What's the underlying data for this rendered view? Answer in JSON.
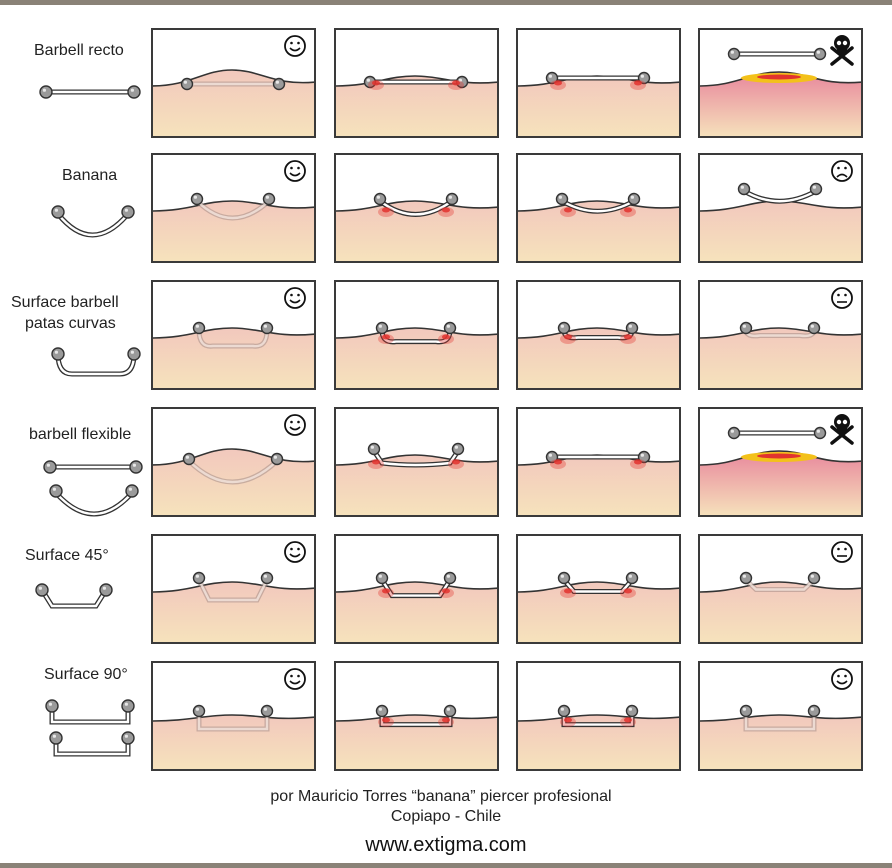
{
  "rows": [
    {
      "label_lines": [
        "Barbell recto"
      ],
      "jewel": "straight",
      "panels": [
        {
          "kind": "good",
          "face": "happy"
        },
        {
          "kind": "mild",
          "face": null
        },
        {
          "kind": "bad",
          "face": null
        },
        {
          "kind": "rejected",
          "face": "skull"
        }
      ]
    },
    {
      "label_lines": [
        "Banana"
      ],
      "jewel": "curved",
      "panels": [
        {
          "kind": "good",
          "face": "happy"
        },
        {
          "kind": "mild",
          "face": null
        },
        {
          "kind": "bad",
          "face": null
        },
        {
          "kind": "out",
          "face": "sad"
        }
      ]
    },
    {
      "label_lines": [
        "Surface barbell",
        "patas curvas"
      ],
      "jewel": "surface-curved",
      "panels": [
        {
          "kind": "good",
          "face": "happy"
        },
        {
          "kind": "mild",
          "face": null
        },
        {
          "kind": "bad",
          "face": null
        },
        {
          "kind": "out",
          "face": "neutral"
        }
      ]
    },
    {
      "label_lines": [
        "barbell flexible"
      ],
      "jewel": "flexible",
      "panels": [
        {
          "kind": "good",
          "face": "happy"
        },
        {
          "kind": "mild",
          "face": null
        },
        {
          "kind": "bad",
          "face": null
        },
        {
          "kind": "rejected",
          "face": "skull"
        }
      ]
    },
    {
      "label_lines": [
        "Surface 45°"
      ],
      "jewel": "surface-45",
      "panels": [
        {
          "kind": "good",
          "face": "happy"
        },
        {
          "kind": "mild",
          "face": null
        },
        {
          "kind": "bad",
          "face": null
        },
        {
          "kind": "out",
          "face": "neutral"
        }
      ]
    },
    {
      "label_lines": [
        "Surface 90°"
      ],
      "jewel": "surface-90",
      "panels": [
        {
          "kind": "good",
          "face": "happy"
        },
        {
          "kind": "mild",
          "face": null
        },
        {
          "kind": "mild",
          "face": null
        },
        {
          "kind": "good",
          "face": "happy"
        }
      ]
    }
  ],
  "credit_line1": "por Mauricio  Torres “banana” piercer profesional",
  "credit_line2": "Copiapo - Chile",
  "website": "www.extigma.com",
  "colors": {
    "skin_top": "#f2c8bd",
    "skin_bottom": "#f6e3bc",
    "inflammation": "#e2332e",
    "rejection_yellow": "#f3c11a",
    "rejection_pink": "#e8879c",
    "metal": "#8c8c8c",
    "outline": "#333333"
  }
}
